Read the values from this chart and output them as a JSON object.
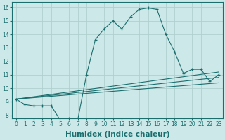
{
  "xlabel": "Humidex (Indice chaleur)",
  "xlim": [
    -0.5,
    23.5
  ],
  "ylim": [
    7.8,
    16.4
  ],
  "background_color": "#cde8e8",
  "grid_color": "#b0d0d0",
  "line_color": "#1a6e6e",
  "main_series": {
    "x": [
      0,
      1,
      2,
      3,
      4,
      5,
      6,
      7,
      8,
      9,
      10,
      11,
      12,
      13,
      14,
      15,
      16,
      17,
      18,
      19,
      20,
      21,
      22,
      23
    ],
    "y": [
      9.2,
      8.8,
      8.7,
      8.7,
      8.7,
      7.65,
      7.75,
      7.65,
      11.0,
      13.6,
      14.4,
      15.0,
      14.4,
      15.3,
      15.85,
      15.95,
      15.85,
      14.0,
      12.7,
      11.1,
      11.4,
      11.4,
      10.5,
      11.0
    ]
  },
  "trend_lines": [
    {
      "x": [
        0,
        23
      ],
      "y": [
        9.2,
        11.2
      ]
    },
    {
      "x": [
        0,
        23
      ],
      "y": [
        9.2,
        10.8
      ]
    },
    {
      "x": [
        0,
        23
      ],
      "y": [
        9.2,
        10.4
      ]
    }
  ],
  "xticks": [
    0,
    1,
    2,
    3,
    4,
    5,
    6,
    7,
    8,
    9,
    10,
    11,
    12,
    13,
    14,
    15,
    16,
    17,
    18,
    19,
    20,
    21,
    22,
    23
  ],
  "yticks": [
    8,
    9,
    10,
    11,
    12,
    13,
    14,
    15,
    16
  ],
  "tick_fontsize": 5.5,
  "label_fontsize": 7.5
}
